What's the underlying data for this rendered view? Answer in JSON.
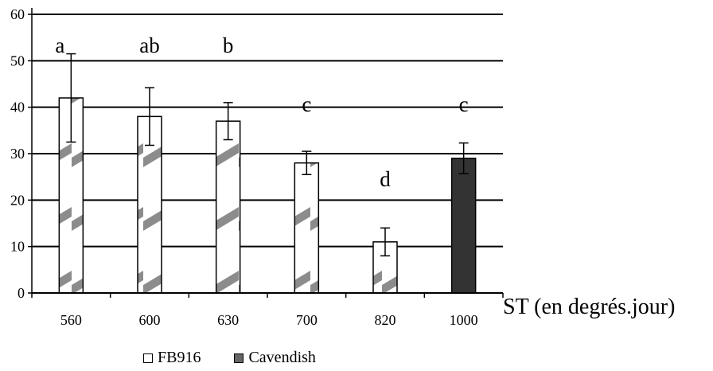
{
  "chart_data": {
    "type": "bar",
    "categories": [
      "560",
      "600",
      "630",
      "700",
      "820",
      "1000"
    ],
    "series": [
      {
        "name": "FB916",
        "values": [
          42,
          38,
          37,
          28,
          11,
          null
        ],
        "errors": [
          9.5,
          6.2,
          4.0,
          2.5,
          3.0,
          null
        ],
        "pattern": "hatched"
      },
      {
        "name": "Cavendish",
        "values": [
          null,
          null,
          null,
          null,
          null,
          29
        ],
        "errors": [
          null,
          null,
          null,
          null,
          null,
          3.3
        ],
        "color": "#333333"
      }
    ],
    "significance_letters": [
      "a",
      "ab",
      "b",
      "c",
      "d",
      "c"
    ],
    "yticks": [
      "0",
      "10",
      "20",
      "30",
      "40",
      "50",
      "60"
    ],
    "ylim": [
      0,
      60
    ],
    "xlabel": "ST (en degrés.jour)",
    "ylabel": "",
    "title": "",
    "grid": true,
    "legend_position": "bottom"
  },
  "legend": {
    "item1": "FB916",
    "item2": "Cavendish"
  },
  "colors": {
    "hatch_gray": "#8c8c8c",
    "dark_bar": "#333333",
    "grid": "#000000"
  }
}
